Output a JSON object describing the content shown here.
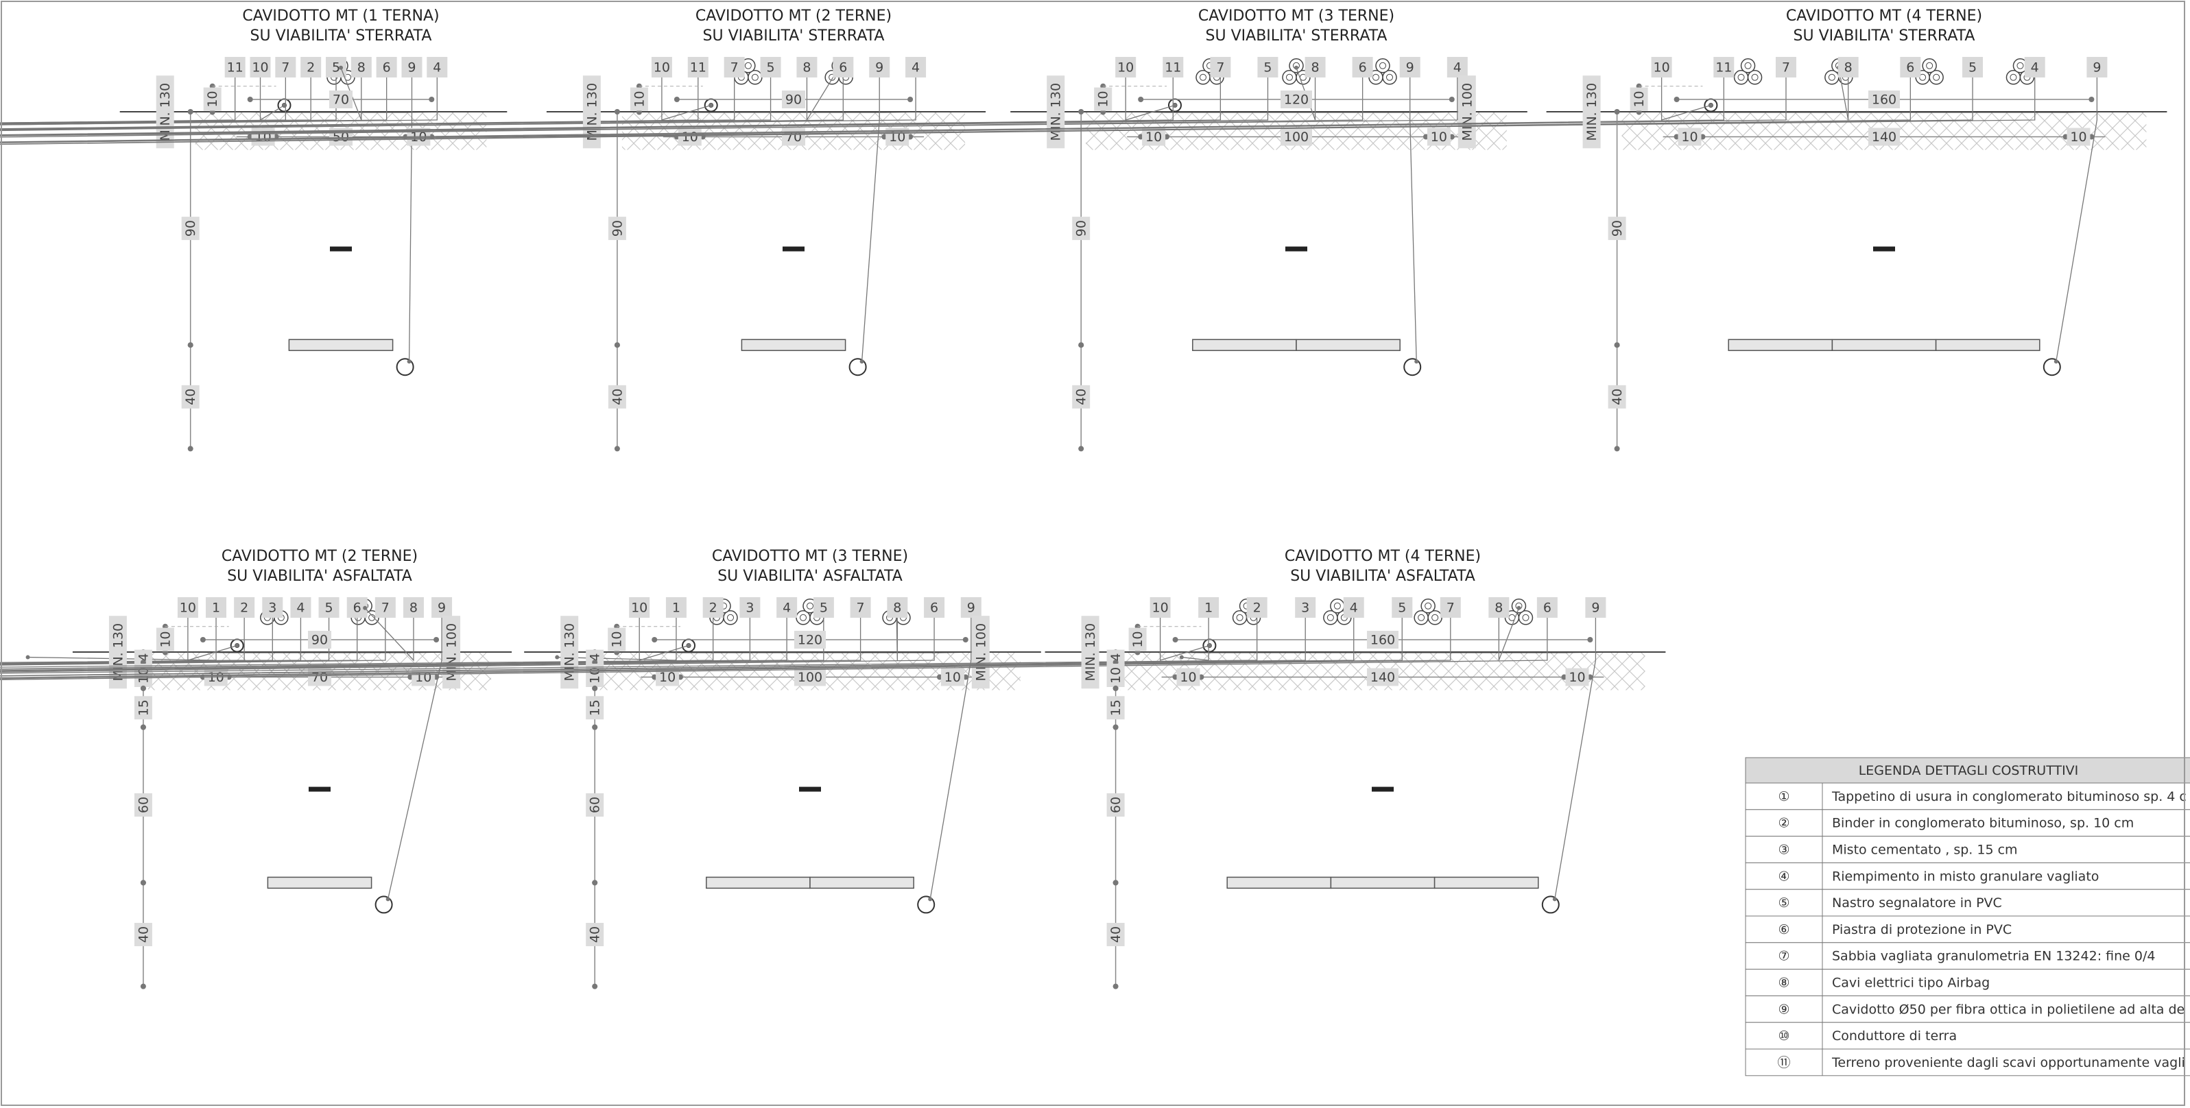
{
  "sections": [
    {
      "title": [
        "CAVIDOTTO MT (1 TERNA)",
        "SU VIABILITA' STERRATA"
      ],
      "callouts": [
        "11",
        "10",
        "7",
        "2",
        "5",
        "8",
        "6",
        "9",
        "4"
      ],
      "top": "70",
      "bottom": [
        "10",
        "50",
        "10"
      ],
      "left": [
        "MIN. 130",
        "90",
        "40",
        "10"
      ]
    },
    {
      "title": [
        "CAVIDOTTO MT (2 TERNE)",
        "SU VIABILITA' STERRATA"
      ],
      "callouts": [
        "10",
        "11",
        "7",
        "5",
        "8",
        "6",
        "9",
        "4"
      ],
      "top": "90",
      "bottom": [
        "10",
        "70",
        "10"
      ],
      "left": [
        "MIN. 130",
        "90",
        "40",
        "10"
      ]
    },
    {
      "title": [
        "CAVIDOTTO MT (3 TERNE)",
        "SU VIABILITA' STERRATA"
      ],
      "callouts": [
        "10",
        "11",
        "7",
        "5",
        "8",
        "6",
        "9",
        "4"
      ],
      "top": "120",
      "bottom": [
        "10",
        "100",
        "10"
      ],
      "left": [
        "MIN. 130",
        "90",
        "40",
        "10"
      ],
      "right": "MIN. 100"
    },
    {
      "title": [
        "CAVIDOTTO MT (4 TERNE)",
        "SU VIABILITA' STERRATA"
      ],
      "callouts": [
        "10",
        "11",
        "7",
        "8",
        "6",
        "5",
        "4",
        "9"
      ],
      "top": "160",
      "bottom": [
        "10",
        "140",
        "10"
      ],
      "left": [
        "MIN. 130",
        "90",
        "40",
        "10"
      ]
    },
    {
      "title": [
        "CAVIDOTTO MT (2 TERNE)",
        "SU VIABILITA' ASFALTATA"
      ],
      "callouts": [
        "10",
        "1",
        "2",
        "3",
        "4",
        "5",
        "6",
        "7",
        "8",
        "9"
      ],
      "top": "90",
      "bottom": [
        "10",
        "70",
        "10"
      ],
      "left": [
        "MIN. 130",
        "4",
        "10",
        "15",
        "60",
        "40",
        "10"
      ],
      "right": "MIN. 100"
    },
    {
      "title": [
        "CAVIDOTTO MT (3 TERNE)",
        "SU VIABILITA' ASFALTATA"
      ],
      "callouts": [
        "10",
        "1",
        "2",
        "3",
        "4",
        "5",
        "7",
        "8",
        "6",
        "9"
      ],
      "top": "120",
      "bottom": [
        "10",
        "100",
        "10"
      ],
      "left": [
        "MIN. 130",
        "4",
        "10",
        "15",
        "60",
        "40",
        "10"
      ],
      "right": "MIN. 100"
    },
    {
      "title": [
        "CAVIDOTTO MT (4 TERNE)",
        "SU VIABILITA' ASFALTATA"
      ],
      "callouts": [
        "10",
        "1",
        "2",
        "3",
        "4",
        "5",
        "7",
        "8",
        "6",
        "9"
      ],
      "top": "160",
      "bottom": [
        "10",
        "140",
        "10"
      ],
      "left": [
        "MIN. 130",
        "4",
        "10",
        "15",
        "60",
        "40",
        "10"
      ]
    }
  ],
  "legend": {
    "title": "LEGENDA DETTAGLI COSTRUTTIVI",
    "rows": [
      [
        "①",
        "Tappetino di usura in conglomerato bituminoso sp. 4 c"
      ],
      [
        "②",
        "Binder in conglomerato bituminoso, sp. 10 cm"
      ],
      [
        "③",
        "Misto cementato , sp. 15 cm"
      ],
      [
        "④",
        "Riempimento in misto granulare vagliato"
      ],
      [
        "⑤",
        "Nastro segnalatore in PVC"
      ],
      [
        "⑥",
        "Piastra di protezione in PVC"
      ],
      [
        "⑦",
        "Sabbia vagliata granulometria EN 13242: fine 0/4"
      ],
      [
        "⑧",
        "Cavi elettrici tipo Airbag"
      ],
      [
        "⑨",
        "Cavidotto Ø50 per fibra ottica in polietilene ad alta de"
      ],
      [
        "⑩",
        "Conduttore di terra"
      ],
      [
        "⑪",
        "Terreno proveniente dagli scavi opportunamente vagli"
      ]
    ]
  }
}
